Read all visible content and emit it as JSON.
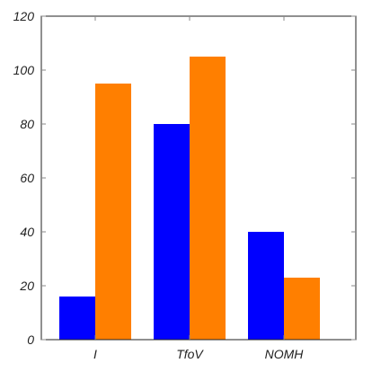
{
  "chart_data": {
    "type": "bar",
    "categories": [
      "I",
      "TfoV",
      "NOMH"
    ],
    "series": [
      {
        "values": [
          16,
          80,
          40
        ],
        "color": "#0000ff"
      },
      {
        "values": [
          95,
          105,
          23
        ],
        "color": "#ff7f00"
      }
    ],
    "ylim": [
      0,
      120
    ],
    "yticks": [
      0,
      20,
      40,
      60,
      80,
      100,
      120
    ],
    "grid": false
  }
}
